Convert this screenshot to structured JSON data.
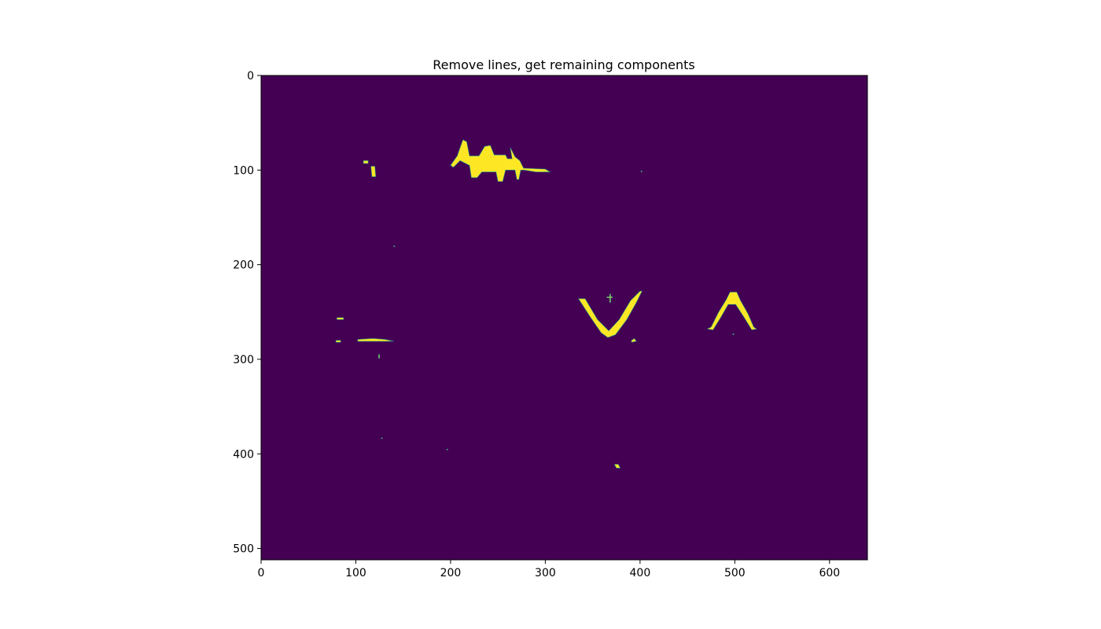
{
  "chart_data": {
    "type": "heatmap",
    "title": "Remove lines, get remaining components",
    "xlabel": "",
    "ylabel": "",
    "xlim": [
      0,
      640
    ],
    "ylim": [
      512,
      0
    ],
    "x_ticks": [
      0,
      100,
      200,
      300,
      400,
      500,
      600
    ],
    "y_ticks": [
      0,
      100,
      200,
      300,
      400,
      500
    ],
    "x_tick_labels": [
      "0",
      "100",
      "200",
      "300",
      "400",
      "500",
      "600"
    ],
    "y_tick_labels": [
      "0",
      "100",
      "200",
      "300",
      "400",
      "500"
    ],
    "grid": false,
    "colormap": "viridis",
    "background_value": 0,
    "colors": {
      "background": "#440154",
      "foreground": "#fde725",
      "edge": "#21918c"
    },
    "components": [
      {
        "label": "blob-top-left",
        "points": [
          [
            108,
            90
          ],
          [
            113,
            90
          ],
          [
            113,
            93
          ],
          [
            108,
            93
          ]
        ]
      },
      {
        "label": "blob-top-left-2",
        "points": [
          [
            116,
            96
          ],
          [
            120,
            96
          ],
          [
            121,
            107
          ],
          [
            117,
            107
          ]
        ]
      },
      {
        "label": "top-scribble",
        "points": [
          [
            200,
            95
          ],
          [
            207,
            85
          ],
          [
            213,
            68
          ],
          [
            217,
            70
          ],
          [
            220,
            85
          ],
          [
            230,
            85
          ],
          [
            236,
            75
          ],
          [
            242,
            74
          ],
          [
            246,
            84
          ],
          [
            258,
            84
          ],
          [
            260,
            88
          ],
          [
            265,
            88
          ],
          [
            263,
            76
          ],
          [
            268,
            86
          ],
          [
            273,
            90
          ],
          [
            277,
            98
          ],
          [
            300,
            99
          ],
          [
            305,
            102
          ],
          [
            290,
            102
          ],
          [
            278,
            100
          ],
          [
            274,
            100
          ],
          [
            272,
            110
          ],
          [
            270,
            110
          ],
          [
            268,
            100
          ],
          [
            258,
            100
          ],
          [
            255,
            112
          ],
          [
            250,
            112
          ],
          [
            248,
            102
          ],
          [
            233,
            102
          ],
          [
            228,
            108
          ],
          [
            222,
            108
          ],
          [
            220,
            95
          ],
          [
            210,
            90
          ],
          [
            203,
            97
          ]
        ]
      },
      {
        "label": "v-shape",
        "points": [
          [
            335,
            236
          ],
          [
            342,
            236
          ],
          [
            355,
            258
          ],
          [
            367,
            270
          ],
          [
            378,
            258
          ],
          [
            390,
            238
          ],
          [
            400,
            228
          ],
          [
            402,
            228
          ],
          [
            396,
            240
          ],
          [
            386,
            258
          ],
          [
            374,
            274
          ],
          [
            366,
            277
          ],
          [
            359,
            272
          ],
          [
            348,
            256
          ]
        ]
      },
      {
        "label": "caret-shape",
        "points": [
          [
            471,
            268
          ],
          [
            475,
            266
          ],
          [
            483,
            250
          ],
          [
            491,
            237
          ],
          [
            495,
            229
          ],
          [
            502,
            229
          ],
          [
            506,
            238
          ],
          [
            514,
            252
          ],
          [
            520,
            266
          ],
          [
            523,
            268
          ],
          [
            518,
            269
          ],
          [
            510,
            256
          ],
          [
            501,
            242
          ],
          [
            493,
            242
          ],
          [
            485,
            256
          ],
          [
            477,
            269
          ]
        ]
      },
      {
        "label": "dash-left-1",
        "points": [
          [
            80,
            256
          ],
          [
            87,
            256
          ],
          [
            87,
            258
          ],
          [
            80,
            258
          ]
        ]
      },
      {
        "label": "dash-left-2",
        "points": [
          [
            79,
            280
          ],
          [
            84,
            280
          ],
          [
            84,
            282
          ],
          [
            79,
            282
          ]
        ]
      },
      {
        "label": "dash-left-3",
        "points": [
          [
            102,
            279
          ],
          [
            118,
            278
          ],
          [
            131,
            279
          ],
          [
            140,
            281
          ],
          [
            131,
            281
          ],
          [
            117,
            281
          ],
          [
            102,
            281
          ]
        ]
      },
      {
        "label": "dot-1",
        "points": [
          [
            124,
            295
          ],
          [
            125,
            295
          ],
          [
            125,
            299
          ],
          [
            124,
            299
          ]
        ]
      },
      {
        "label": "dash-mid",
        "points": [
          [
            391,
            280
          ],
          [
            394,
            278
          ],
          [
            396,
            281
          ],
          [
            391,
            282
          ]
        ]
      },
      {
        "label": "cross-mark",
        "points": [
          [
            365,
            234
          ],
          [
            368,
            234
          ],
          [
            368,
            231
          ],
          [
            369,
            231
          ],
          [
            369,
            234
          ],
          [
            371,
            234
          ],
          [
            371,
            235
          ],
          [
            369,
            235
          ],
          [
            369,
            240
          ],
          [
            368,
            240
          ],
          [
            368,
            235
          ],
          [
            365,
            235
          ]
        ]
      },
      {
        "label": "dot-bottom",
        "points": [
          [
            373,
            411
          ],
          [
            377,
            411
          ],
          [
            379,
            415
          ],
          [
            375,
            415
          ]
        ]
      },
      {
        "label": "speck-1",
        "points": [
          [
            140,
            180
          ],
          [
            141,
            180
          ],
          [
            141,
            181
          ],
          [
            140,
            181
          ]
        ]
      },
      {
        "label": "speck-2",
        "points": [
          [
            401,
            101
          ],
          [
            402,
            101
          ],
          [
            402,
            102
          ],
          [
            401,
            102
          ]
        ]
      },
      {
        "label": "speck-3",
        "points": [
          [
            127,
            383
          ],
          [
            128,
            383
          ],
          [
            128,
            384
          ],
          [
            127,
            384
          ]
        ]
      },
      {
        "label": "speck-4",
        "points": [
          [
            196,
            395
          ],
          [
            197,
            395
          ],
          [
            197,
            396
          ],
          [
            196,
            396
          ]
        ]
      },
      {
        "label": "speck-5",
        "points": [
          [
            498,
            273
          ],
          [
            499,
            273
          ],
          [
            499,
            274
          ],
          [
            498,
            274
          ]
        ]
      }
    ]
  }
}
